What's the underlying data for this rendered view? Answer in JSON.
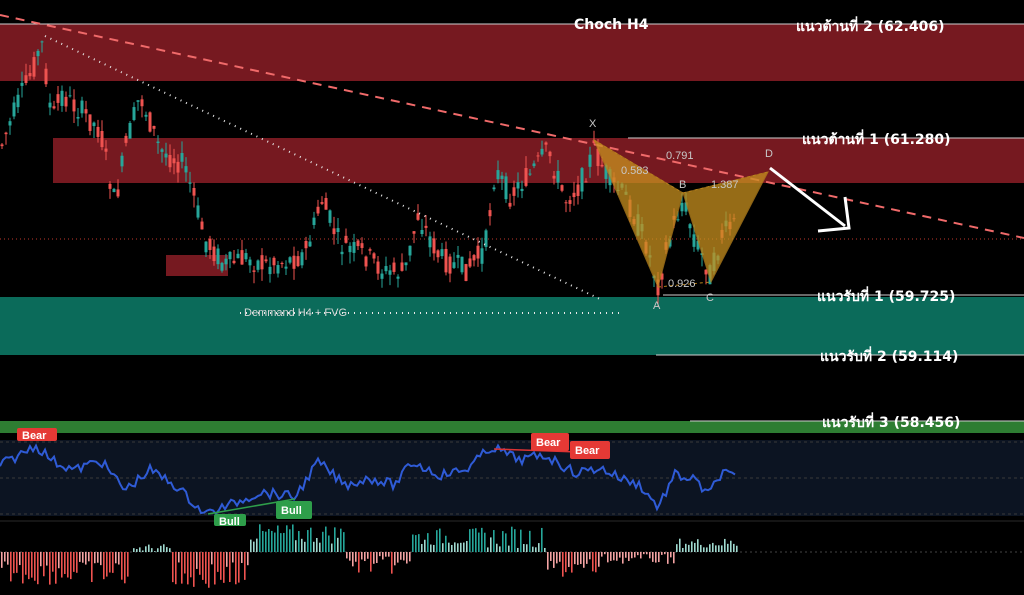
{
  "chart_data": {
    "type": "candlestick",
    "resistance": [
      {
        "label": "แนวต้านที่ 2 (62.406)",
        "price": 62.406
      },
      {
        "label": "แนวต้านที่ 1 (61.280)",
        "price": 61.28
      }
    ],
    "support": [
      {
        "label": "แนวรับที่ 1 (59.725)",
        "price": 59.725
      },
      {
        "label": "แนวรับที่ 2 (59.114)",
        "price": 59.114
      },
      {
        "label": "แนวรับที่ 3 (58.456)",
        "price": 58.456
      }
    ],
    "annotations": {
      "choch": "Choch H4",
      "demand": "Demmand H4 + FVG"
    },
    "harmonic": {
      "points": [
        "X",
        "A",
        "B",
        "C",
        "D"
      ],
      "ratios": [
        "0.583",
        "0.791",
        "1.387",
        "0.926"
      ]
    },
    "rsi_signals": [
      {
        "label": "Bear"
      },
      {
        "label": "Bull"
      },
      {
        "label": "Bull"
      },
      {
        "label": "Bear"
      },
      {
        "label": "Bear"
      }
    ],
    "colors": {
      "up": "#26a69a",
      "down": "#ef5350",
      "resistance_zone": "#8b1d26",
      "demand_zone": "#0b6b5a",
      "rsi_line": "#2f5bd6",
      "harmonic_fill": "#c8911f"
    }
  }
}
